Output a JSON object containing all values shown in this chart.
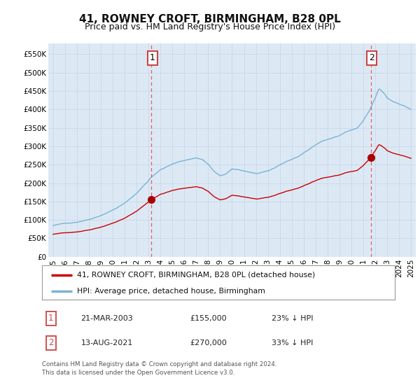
{
  "title": "41, ROWNEY CROFT, BIRMINGHAM, B28 0PL",
  "subtitle": "Price paid vs. HM Land Registry's House Price Index (HPI)",
  "background_color": "#ffffff",
  "plot_bg_color": "#dce9f5",
  "grid_color": "#c8d8e8",
  "ylim": [
    0,
    580000
  ],
  "yticks": [
    0,
    50000,
    100000,
    150000,
    200000,
    250000,
    300000,
    350000,
    400000,
    450000,
    500000,
    550000
  ],
  "ytick_labels": [
    "£0",
    "£50K",
    "£100K",
    "£150K",
    "£200K",
    "£250K",
    "£300K",
    "£350K",
    "£400K",
    "£450K",
    "£500K",
    "£550K"
  ],
  "sale1_price": 155000,
  "sale2_price": 270000,
  "hpi_line_color": "#7ab3d4",
  "price_line_color": "#cc0000",
  "vline_color": "#e06060",
  "marker_color": "#aa0000",
  "label_border_color": "#cc4444",
  "legend_line1": "41, ROWNEY CROFT, BIRMINGHAM, B28 0PL (detached house)",
  "legend_line2": "HPI: Average price, detached house, Birmingham",
  "table_row1": [
    "1",
    "21-MAR-2003",
    "£155,000",
    "23% ↓ HPI"
  ],
  "table_row2": [
    "2",
    "13-AUG-2021",
    "£270,000",
    "33% ↓ HPI"
  ],
  "footer": "Contains HM Land Registry data © Crown copyright and database right 2024.\nThis data is licensed under the Open Government Licence v3.0.",
  "title_fontsize": 11,
  "subtitle_fontsize": 9,
  "tick_fontsize": 7.5
}
